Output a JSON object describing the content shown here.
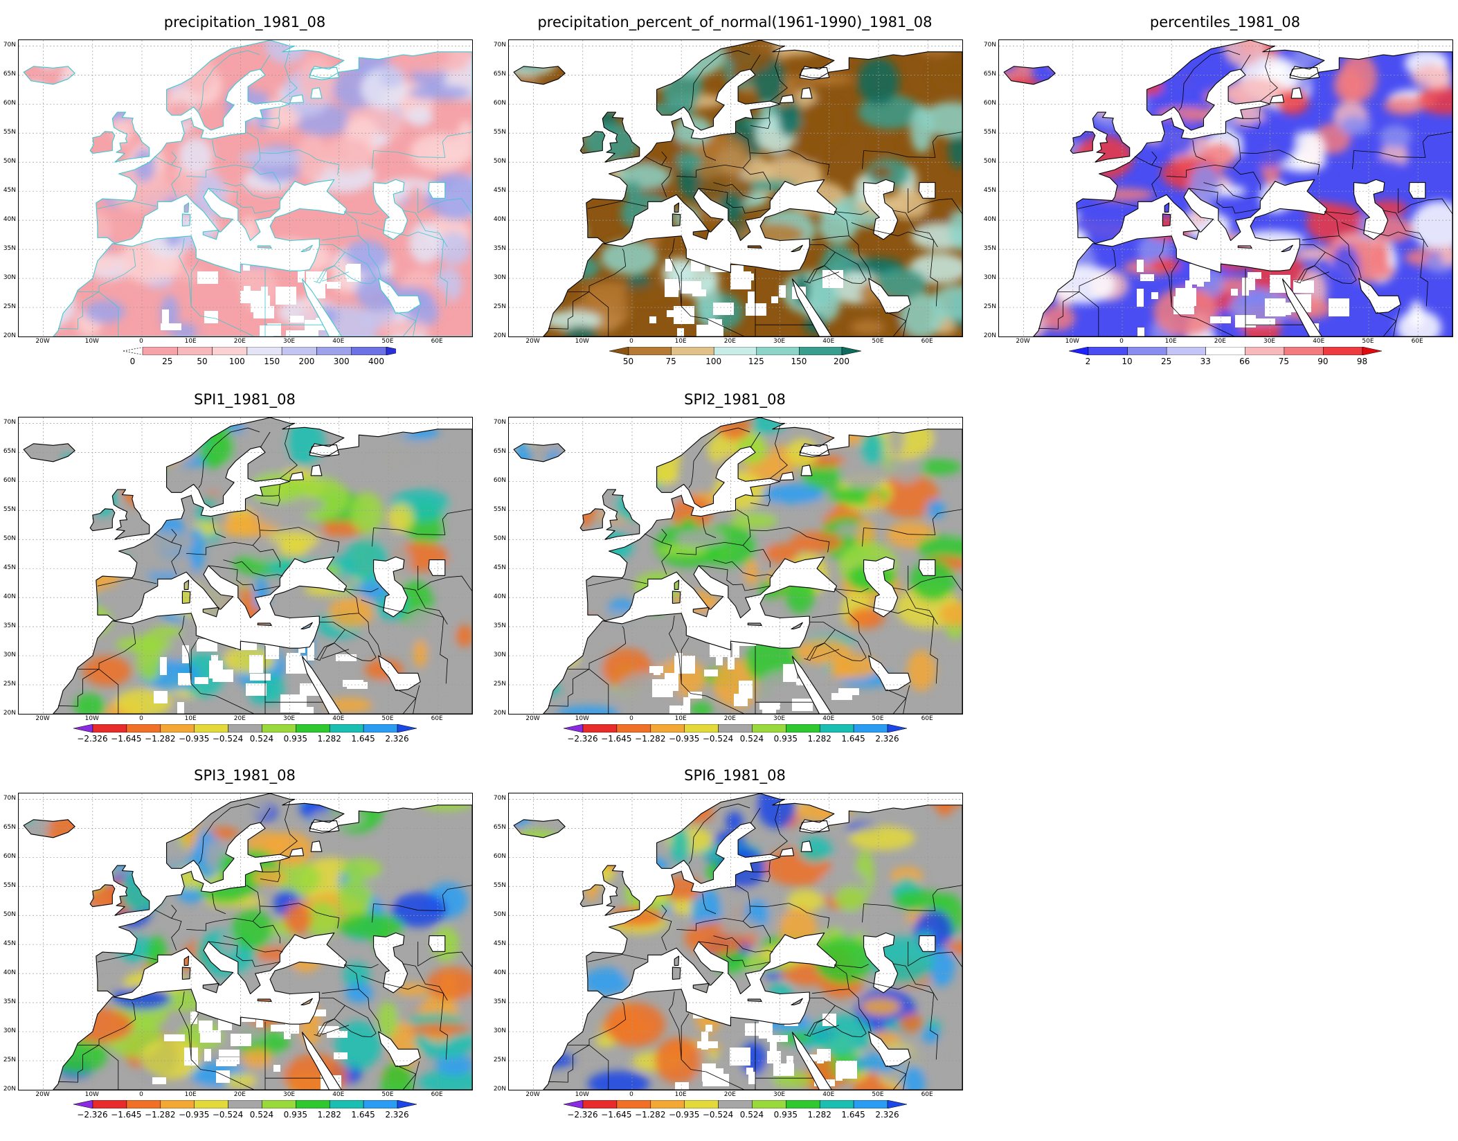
{
  "lat_ticks": [
    "70N",
    "65N",
    "60N",
    "55N",
    "50N",
    "45N",
    "40N",
    "35N",
    "30N",
    "25N",
    "20N"
  ],
  "lon_ticks": [
    "20W",
    "10W",
    "0",
    "10E",
    "20E",
    "30E",
    "40E",
    "50E",
    "60E"
  ],
  "panels": [
    {
      "id": "precipitation",
      "title": "precipitation_1981_08",
      "colorbar": {
        "labels": [
          "0",
          "25",
          "50",
          "100",
          "150",
          "200",
          "300",
          "400"
        ],
        "colors": [
          "#f5a3a8",
          "#f8b9bc",
          "#fbd2d3",
          "#e4e4f6",
          "#c3c5f0",
          "#9ea2ea",
          "#6c71e3",
          "#2a2fd8"
        ],
        "left_arrow": false,
        "right_arrow": true,
        "dashed_left": true
      },
      "palette": [
        "#f5a3a8",
        "#f8b9bc",
        "#fbd2d3",
        "#e4e4f6",
        "#c3c5f0",
        "#9ea2ea"
      ],
      "border_color": "#3fc7d0"
    },
    {
      "id": "percent_normal",
      "title": "precipitation_percent_of_normal(1961-1990)_1981_08",
      "colorbar": {
        "labels": [
          "50",
          "75",
          "100",
          "125",
          "150",
          "200"
        ],
        "colors": [
          "#8c5511",
          "#b67a34",
          "#dfc189",
          "#c8ece6",
          "#8cd3c8",
          "#3a9e8e",
          "#0f6b5d"
        ],
        "left_arrow": true,
        "right_arrow": true
      },
      "palette": [
        "#8c5511",
        "#b67a34",
        "#dfc189",
        "#c8ece6",
        "#8cd3c8",
        "#3a9e8e",
        "#0f6b5d"
      ],
      "border_color": "#000000"
    },
    {
      "id": "percentiles",
      "title": "percentiles_1981_08",
      "colorbar": {
        "labels": [
          "2",
          "10",
          "25",
          "33",
          "66",
          "75",
          "90",
          "98"
        ],
        "colors": [
          "#1e22ff",
          "#4a4ef2",
          "#8a8df0",
          "#c4c5f6",
          "#ffffff",
          "#f7b9bb",
          "#f27b7f",
          "#ee3b40",
          "#e20a10"
        ],
        "left_arrow": true,
        "right_arrow": true
      },
      "palette": [
        "#4a4ef2",
        "#8a8df0",
        "#ffffff",
        "#f7b9bb",
        "#f27b7f",
        "#ee3b40"
      ],
      "border_color": "#000000"
    },
    {
      "id": "spi1",
      "title": "SPI1_1981_08",
      "colorbar": {
        "labels": [
          "-2.326",
          "-1.645",
          "-1.282",
          "-0.935",
          "-0.524",
          "0.524",
          "0.935",
          "1.282",
          "1.645",
          "2.326"
        ],
        "colors": [
          "#8a2be2",
          "#e82c2c",
          "#ef7026",
          "#f3a735",
          "#e3d93a",
          "#a6a6a6",
          "#9ad93c",
          "#2fc92f",
          "#1bbfb1",
          "#2a9df2",
          "#1a47e6"
        ],
        "left_arrow": true,
        "right_arrow": true
      },
      "palette": [
        "#a6a6a6",
        "#a6a6a6",
        "#a6a6a6",
        "#9ad93c",
        "#2fc92f",
        "#1bbfb1",
        "#2a9df2",
        "#e3d93a",
        "#f3a735",
        "#ef7026"
      ],
      "border_color": "#000000"
    },
    {
      "id": "spi2",
      "title": "SPI2_1981_08",
      "colorbar": {
        "labels": [
          "-2.326",
          "-1.645",
          "-1.282",
          "-0.935",
          "-0.524",
          "0.524",
          "0.935",
          "1.282",
          "1.645",
          "2.326"
        ],
        "colors": [
          "#8a2be2",
          "#e82c2c",
          "#ef7026",
          "#f3a735",
          "#e3d93a",
          "#a6a6a6",
          "#9ad93c",
          "#2fc92f",
          "#1bbfb1",
          "#2a9df2",
          "#1a47e6"
        ],
        "left_arrow": true,
        "right_arrow": true
      },
      "palette": [
        "#a6a6a6",
        "#a6a6a6",
        "#a6a6a6",
        "#9ad93c",
        "#2fc92f",
        "#1bbfb1",
        "#2a9df2",
        "#e3d93a",
        "#f3a735",
        "#ef7026"
      ],
      "border_color": "#000000"
    },
    {
      "id": "spi3",
      "title": "SPI3_1981_08",
      "colorbar": {
        "labels": [
          "-2.326",
          "-1.645",
          "-1.282",
          "-0.935",
          "-0.524",
          "0.524",
          "0.935",
          "1.282",
          "1.645",
          "2.326"
        ],
        "colors": [
          "#8a2be2",
          "#e82c2c",
          "#ef7026",
          "#f3a735",
          "#e3d93a",
          "#a6a6a6",
          "#9ad93c",
          "#2fc92f",
          "#1bbfb1",
          "#2a9df2",
          "#1a47e6"
        ],
        "left_arrow": true,
        "right_arrow": true
      },
      "palette": [
        "#a6a6a6",
        "#a6a6a6",
        "#9ad93c",
        "#2fc92f",
        "#1bbfb1",
        "#2a9df2",
        "#1a47e6",
        "#e3d93a",
        "#f3a735",
        "#ef7026"
      ],
      "border_color": "#000000"
    },
    {
      "id": "spi6",
      "title": "SPI6_1981_08",
      "colorbar": {
        "labels": [
          "-2.326",
          "-1.645",
          "-1.282",
          "-0.935",
          "-0.524",
          "0.524",
          "0.935",
          "1.282",
          "1.645",
          "2.326"
        ],
        "colors": [
          "#8a2be2",
          "#e82c2c",
          "#ef7026",
          "#f3a735",
          "#e3d93a",
          "#a6a6a6",
          "#9ad93c",
          "#2fc92f",
          "#1bbfb1",
          "#2a9df2",
          "#1a47e6"
        ],
        "left_arrow": true,
        "right_arrow": true
      },
      "palette": [
        "#a6a6a6",
        "#a6a6a6",
        "#9ad93c",
        "#2fc92f",
        "#1bbfb1",
        "#2a9df2",
        "#1a47e6",
        "#e3d93a",
        "#f3a735",
        "#ef7026"
      ],
      "border_color": "#000000"
    }
  ]
}
